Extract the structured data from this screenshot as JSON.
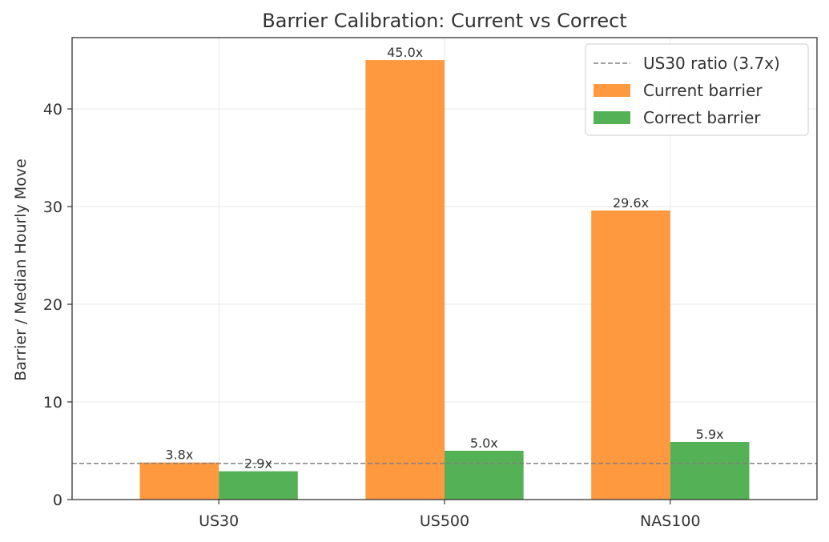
{
  "chart_data": {
    "type": "bar",
    "title": "Barrier Calibration: Current vs Correct",
    "xlabel": "",
    "ylabel": "Barrier / Median Hourly Move",
    "categories": [
      "US30",
      "US500",
      "NAS100"
    ],
    "ylim": [
      0,
      47.3
    ],
    "yticks": [
      0,
      10,
      20,
      30,
      40
    ],
    "grid": true,
    "legend_position": "top-right",
    "series": [
      {
        "name": "Current barrier",
        "color": "#ff9940",
        "values": [
          3.8,
          45.0,
          29.6
        ],
        "labels": [
          "3.8x",
          "45.0x",
          "29.6x"
        ]
      },
      {
        "name": "Correct barrier",
        "color": "#55b155",
        "values": [
          2.9,
          5.0,
          5.9
        ],
        "labels": [
          "2.9x",
          "5.0x",
          "5.9x"
        ]
      }
    ],
    "reference_line": {
      "name": "US30 ratio (3.7x)",
      "value": 3.7,
      "color": "#808080",
      "style": "dashed"
    }
  }
}
